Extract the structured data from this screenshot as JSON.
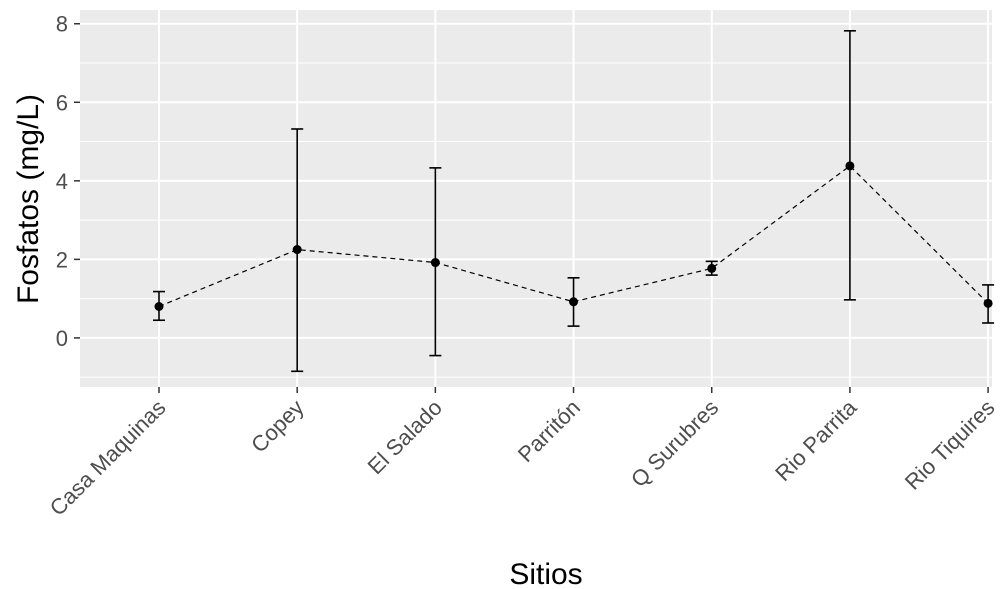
{
  "chart_data": {
    "type": "line",
    "style": "point-with-error-bars, dashed connecting line",
    "xlabel": "Sitios",
    "ylabel": "Fosfatos (mg/L)",
    "categories": [
      "Casa Maquinas",
      "Copey",
      "El Salado",
      "Parritón",
      "Q Surubres",
      "Rio Parrita",
      "Rio Tiquires"
    ],
    "series": [
      {
        "values": [
          0.8,
          2.25,
          1.92,
          0.92,
          1.77,
          4.38,
          0.88
        ],
        "lower": [
          0.45,
          -0.85,
          -0.45,
          0.3,
          1.6,
          0.97,
          0.38
        ],
        "upper": [
          1.18,
          5.32,
          4.33,
          1.53,
          1.95,
          7.82,
          1.35
        ]
      }
    ],
    "yticks": [
      0,
      2,
      4,
      6,
      8
    ],
    "ylim": [
      -1.25,
      8.35
    ],
    "grid": true,
    "colors": {
      "panel": "#ebebeb",
      "grid": "#ffffff",
      "marks": "#000000",
      "tick_text": "#4d4d4d"
    }
  }
}
